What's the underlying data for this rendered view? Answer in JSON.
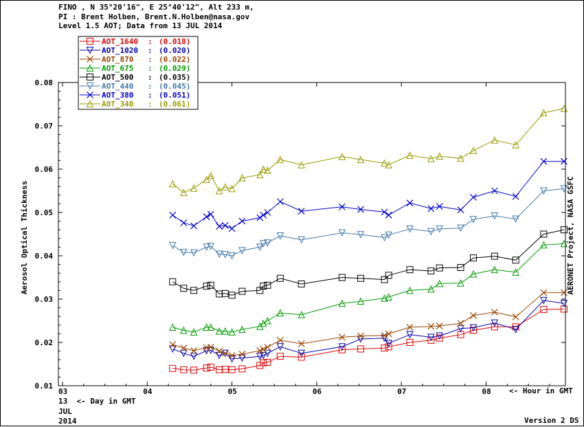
{
  "header": {
    "line1": "FINO , N 35°20'16\", E 25°40'12\", Alt 233 m,",
    "line2": "PI : Brent Holben, Brent.N.Holben@nasa.gov",
    "line3": "Level 1.5 AOT; Data from 13 JUL 2014"
  },
  "footer": {
    "day_label": "13  <- Day in GMT",
    "month": "JUL",
    "year": "2014",
    "hour_label": "<- Hour in GMT",
    "version": "Version 2 DS",
    "credit": "AERONET Project, NASA GSFC"
  },
  "chart_data": {
    "type": "line",
    "ylabel": "Aerosol Optical Thickness",
    "xlabel": "Hour in GMT",
    "ylim": [
      0.01,
      0.08
    ],
    "yticks": [
      0.01,
      0.02,
      0.03,
      0.04,
      0.05,
      0.06,
      0.07,
      0.08
    ],
    "ytick_labels": [
      "0.01",
      "0.02",
      "0.03",
      "0.04",
      "0.05",
      "0.06",
      "0.07",
      "0.08"
    ],
    "xlim": [
      3,
      9
    ],
    "xticks": [
      3,
      4,
      5,
      6,
      7,
      8
    ],
    "xtick_labels": [
      "03",
      "04",
      "05",
      "06",
      "07",
      "08"
    ],
    "legend_position": "top-left",
    "x": [
      4.3,
      4.43,
      4.55,
      4.7,
      4.75,
      4.85,
      4.92,
      5.0,
      5.12,
      5.33,
      5.37,
      5.42,
      5.57,
      5.82,
      6.3,
      6.52,
      6.8,
      6.85,
      7.1,
      7.35,
      7.45,
      7.7,
      7.85,
      8.1,
      8.35,
      8.68,
      8.92
    ],
    "series": [
      {
        "name": "AOT_1640",
        "mean_label": "(0.018)",
        "color": "#dd0000",
        "marker": "square",
        "values": [
          0.014,
          0.0137,
          0.0136,
          0.0141,
          0.0143,
          0.0137,
          0.0138,
          0.0137,
          0.0139,
          0.0147,
          0.0153,
          0.0154,
          0.0168,
          0.0166,
          0.0183,
          0.0185,
          0.0187,
          0.019,
          0.02,
          0.0205,
          0.021,
          0.0218,
          0.0228,
          0.0236,
          0.0236,
          0.0276,
          0.0277
        ]
      },
      {
        "name": "AOT_1020",
        "mean_label": "(0.020)",
        "color": "#0000aa",
        "marker": "triangle-down",
        "values": [
          0.0185,
          0.0175,
          0.0168,
          0.0181,
          0.0182,
          0.017,
          0.0175,
          0.0162,
          0.0164,
          0.0168,
          0.017,
          0.0175,
          0.019,
          0.0175,
          0.019,
          0.0208,
          0.021,
          0.0198,
          0.0218,
          0.0212,
          0.0215,
          0.0232,
          0.0234,
          0.0245,
          0.023,
          0.0297,
          0.029
        ]
      },
      {
        "name": "AOT_870",
        "mean_label": "(0.022)",
        "color": "#994400",
        "marker": "x",
        "values": [
          0.0195,
          0.0187,
          0.0181,
          0.0188,
          0.0189,
          0.018,
          0.0175,
          0.017,
          0.0173,
          0.0181,
          0.0184,
          0.0189,
          0.0205,
          0.0197,
          0.0212,
          0.0215,
          0.0216,
          0.022,
          0.0235,
          0.0237,
          0.0238,
          0.0244,
          0.0262,
          0.027,
          0.0259,
          0.0315,
          0.0315
        ]
      },
      {
        "name": "AOT_675",
        "mean_label": "(0.029)",
        "color": "#009900",
        "marker": "triangle-up",
        "values": [
          0.0235,
          0.0228,
          0.0224,
          0.0235,
          0.0235,
          0.0226,
          0.0226,
          0.0224,
          0.023,
          0.0237,
          0.0244,
          0.025,
          0.0268,
          0.0264,
          0.029,
          0.0295,
          0.0302,
          0.0305,
          0.032,
          0.0323,
          0.0336,
          0.0337,
          0.0358,
          0.0368,
          0.0362,
          0.0425,
          0.0428
        ]
      },
      {
        "name": "AOT_500",
        "mean_label": "(0.035)",
        "color": "#000000",
        "marker": "square",
        "values": [
          0.034,
          0.0325,
          0.032,
          0.033,
          0.0332,
          0.0312,
          0.0313,
          0.0309,
          0.0318,
          0.032,
          0.033,
          0.0332,
          0.0348,
          0.0335,
          0.035,
          0.0348,
          0.0345,
          0.0355,
          0.0368,
          0.0365,
          0.0372,
          0.0373,
          0.0395,
          0.0399,
          0.039,
          0.045,
          0.046
        ]
      },
      {
        "name": "AOT_440",
        "mean_label": "(0.045)",
        "color": "#4477aa",
        "marker": "triangle-down",
        "values": [
          0.0424,
          0.0408,
          0.0407,
          0.042,
          0.0422,
          0.0404,
          0.0403,
          0.04,
          0.0412,
          0.042,
          0.0428,
          0.043,
          0.0446,
          0.0437,
          0.0453,
          0.0449,
          0.0442,
          0.0448,
          0.0462,
          0.0456,
          0.0462,
          0.0464,
          0.0484,
          0.0492,
          0.0485,
          0.055,
          0.0555
        ]
      },
      {
        "name": "AOT_380",
        "mean_label": "(0.051)",
        "color": "#0000cc",
        "marker": "x",
        "values": [
          0.0494,
          0.0476,
          0.0469,
          0.049,
          0.0496,
          0.0468,
          0.047,
          0.0463,
          0.048,
          0.0488,
          0.0494,
          0.05,
          0.0525,
          0.0503,
          0.0513,
          0.0507,
          0.0501,
          0.0494,
          0.0522,
          0.0509,
          0.0514,
          0.0506,
          0.0535,
          0.055,
          0.0537,
          0.0618,
          0.0618
        ]
      },
      {
        "name": "AOT_340",
        "mean_label": "(0.061)",
        "color": "#999900",
        "marker": "triangle-up",
        "values": [
          0.0566,
          0.0546,
          0.0556,
          0.0576,
          0.0585,
          0.055,
          0.0559,
          0.0555,
          0.058,
          0.0587,
          0.06,
          0.0597,
          0.0622,
          0.061,
          0.0629,
          0.0622,
          0.0614,
          0.061,
          0.0632,
          0.0624,
          0.063,
          0.0625,
          0.0643,
          0.0667,
          0.0656,
          0.073,
          0.074
        ]
      }
    ]
  }
}
